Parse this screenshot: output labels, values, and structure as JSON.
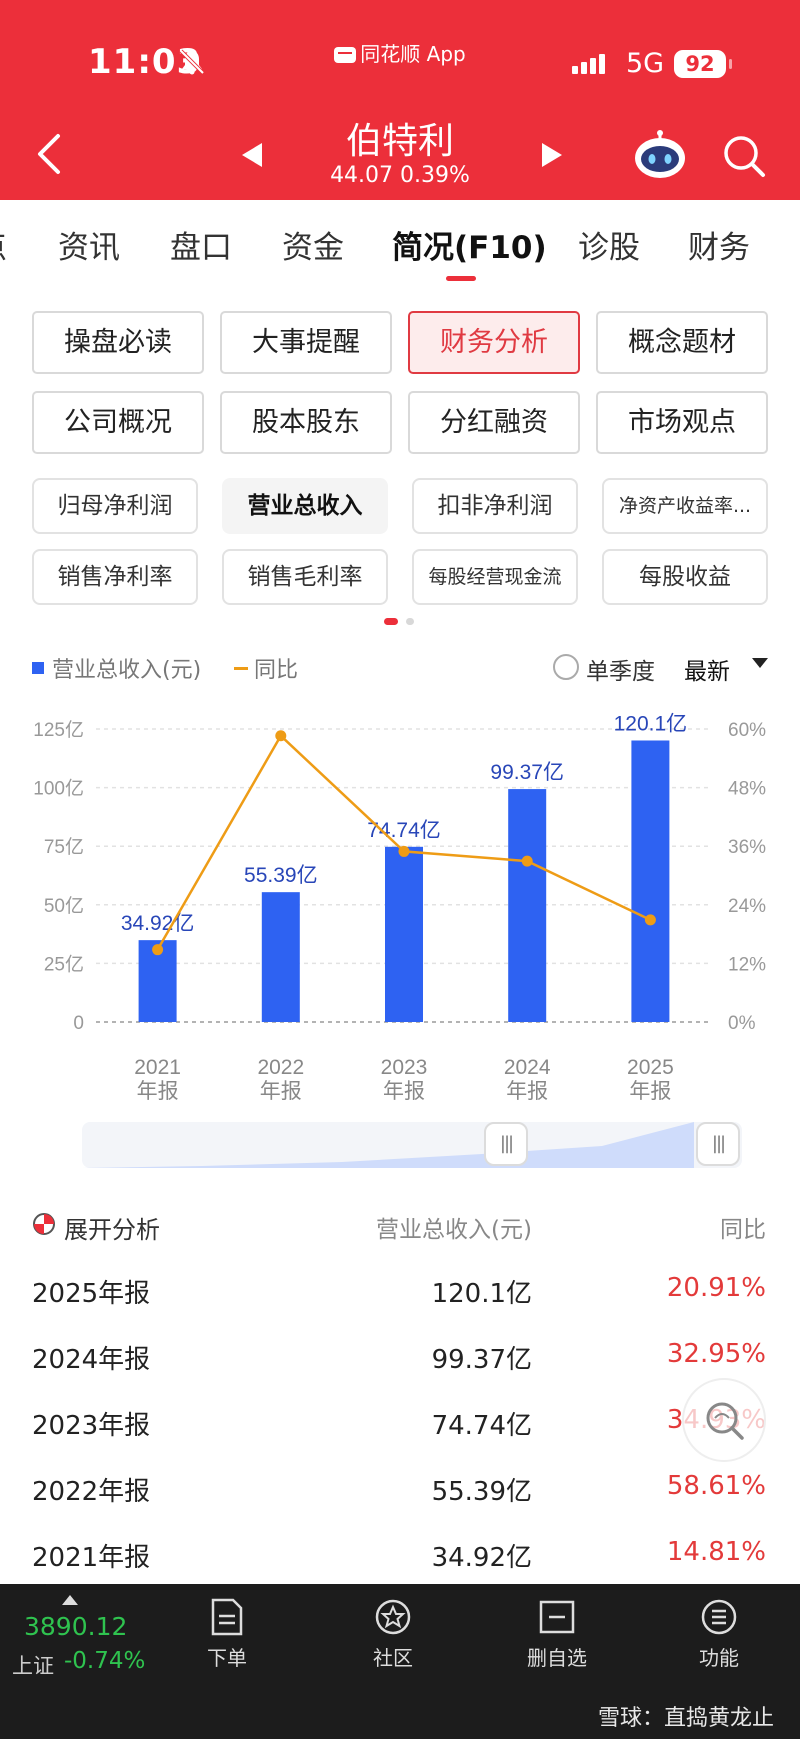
{
  "status": {
    "time": "11:03",
    "app_name": "同花顺 App",
    "network": "5G",
    "battery": "92"
  },
  "stock": {
    "name": "伯特利",
    "price_line": "44.07  0.39%"
  },
  "tabs": [
    "点",
    "资讯",
    "盘口",
    "资金",
    "简况(F10)",
    "诊股",
    "财务"
  ],
  "active_tab": "简况(F10)",
  "categories": [
    "操盘必读",
    "大事提醒",
    "财务分析",
    "概念题材",
    "公司概况",
    "股本股东",
    "分红融资",
    "市场观点"
  ],
  "active_category": "财务分析",
  "metrics": [
    "归母净利润",
    "营业总收入",
    "扣非净利润",
    "净资产收益率...",
    "销售净利率",
    "销售毛利率",
    "每股经营现金流",
    "每股收益"
  ],
  "active_metric": "营业总收入",
  "legend": {
    "bar": "营业总收入(元)",
    "line": "同比"
  },
  "controls": {
    "quarter": "单季度",
    "latest": "最新"
  },
  "chart_data": {
    "type": "bar",
    "categories": [
      "2021",
      "2022",
      "2023",
      "2024",
      "2025"
    ],
    "category_sublabel": "年报",
    "series": [
      {
        "name": "营业总收入(元)",
        "type": "bar",
        "values": [
          34.92,
          55.39,
          74.74,
          99.37,
          120.1
        ],
        "labels": [
          "34.92亿",
          "55.39亿",
          "74.74亿",
          "99.37亿",
          "120.1亿"
        ],
        "color": "#2e62f2"
      },
      {
        "name": "同比",
        "type": "line",
        "values": [
          14.81,
          58.61,
          34.93,
          32.95,
          20.91
        ],
        "color": "#ee9c16"
      }
    ],
    "y_left": {
      "ticks": [
        "0",
        "25亿",
        "50亿",
        "75亿",
        "100亿",
        "125亿"
      ],
      "lim": [
        0,
        125
      ]
    },
    "y_right": {
      "ticks": [
        "0%",
        "12%",
        "24%",
        "36%",
        "48%",
        "60%"
      ],
      "lim": [
        0,
        60
      ]
    },
    "grid": true
  },
  "table": {
    "title": "展开分析",
    "col_value": "营业总收入(元)",
    "col_change": "同比",
    "rows": [
      {
        "label": "2025年报",
        "value": "120.1亿",
        "change": "20.91%"
      },
      {
        "label": "2024年报",
        "value": "99.37亿",
        "change": "32.95%"
      },
      {
        "label": "2023年报",
        "value": "74.74亿",
        "change": "34.93%"
      },
      {
        "label": "2022年报",
        "value": "55.39亿",
        "change": "58.61%"
      },
      {
        "label": "2021年报",
        "value": "34.92亿",
        "change": "14.81%"
      }
    ]
  },
  "bottom_bar": {
    "index_value": "3890.12",
    "index_name": "上证",
    "index_change": "-0.74%",
    "nav": [
      "下单",
      "社区",
      "删自选",
      "功能"
    ],
    "watermark": "雪球：直捣黄龙止"
  },
  "colors": {
    "brand_red": "#ec2f3a",
    "bar_blue": "#2e62f2",
    "line_orange": "#ee9c16",
    "up_red": "#e33a3a",
    "down_green": "#2fc34f"
  }
}
